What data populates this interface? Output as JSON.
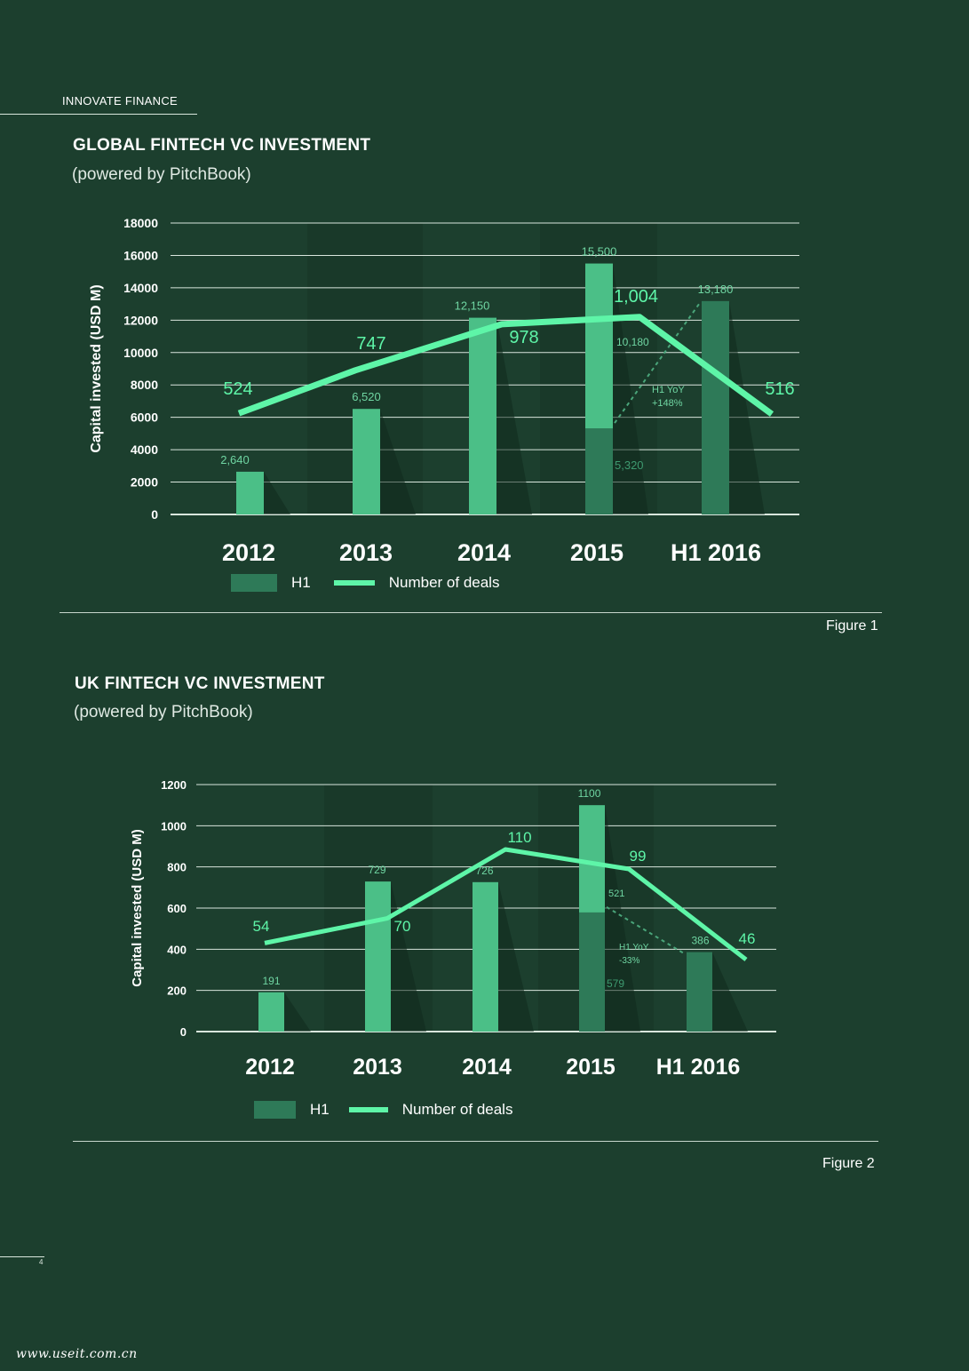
{
  "header": {
    "label": "INNOVATE FINANCE"
  },
  "figure1": {
    "title": "GLOBAL FINTECH VC INVESTMENT",
    "subtitle": "(powered by PitchBook)",
    "figure_label": "Figure 1"
  },
  "figure2": {
    "title": "UK FINTECH VC INVESTMENT",
    "subtitle": "(powered by PitchBook)",
    "figure_label": "Figure 2"
  },
  "legend": {
    "h1_label": "H1",
    "deals_label": "Number of deals"
  },
  "colors": {
    "bar": "#4bbf87",
    "bar_h1": "#2e7a58",
    "deals_line": "#5ef5a8",
    "grid": "#d9e6dd",
    "background": "#1c3f2e"
  },
  "page": {
    "number": "4",
    "watermark": "www.useit.com.cn"
  },
  "chart_data": [
    {
      "type": "bar",
      "title": "GLOBAL FINTECH VC INVESTMENT",
      "ylabel": "Capital invested (USD M)",
      "ylim": [
        0,
        18000
      ],
      "yticks": [
        0,
        2000,
        4000,
        6000,
        8000,
        10000,
        12000,
        14000,
        16000,
        18000
      ],
      "categories": [
        "2012",
        "2013",
        "2014",
        "2015",
        "H1 2016"
      ],
      "values": [
        2640,
        6520,
        12150,
        15500,
        13180
      ],
      "value_labels": [
        "2,640",
        "6,520",
        "12,150",
        "15,500",
        "13,180"
      ],
      "h1_values": [
        null,
        null,
        null,
        5320,
        13180
      ],
      "h1_labels": [
        null,
        null,
        null,
        "5,320",
        null
      ],
      "h2_label": "10,180",
      "yoy_label_1": "H1 YoY",
      "yoy_label_2": "+148%",
      "deals": [
        524,
        747,
        978,
        1004,
        516
      ],
      "deals_labels": [
        "524",
        "747",
        "978",
        "1,004",
        "516"
      ],
      "deals_line_y": [
        6250,
        8900,
        11750,
        12200,
        6200
      ]
    },
    {
      "type": "bar",
      "title": "UK FINTECH VC INVESTMENT",
      "ylabel": "Capital invested (USD M)",
      "ylim": [
        0,
        1200
      ],
      "yticks": [
        0,
        200,
        400,
        600,
        800,
        1000,
        1200
      ],
      "categories": [
        "2012",
        "2013",
        "2014",
        "2015",
        "H1 2016"
      ],
      "values": [
        191,
        729,
        726,
        1100,
        386
      ],
      "value_labels": [
        "191",
        "729",
        "726",
        "1100",
        "386"
      ],
      "h1_values": [
        null,
        null,
        null,
        579,
        386
      ],
      "h1_labels": [
        null,
        null,
        null,
        "579",
        null
      ],
      "h2_label": "521",
      "yoy_label_1": "H1 YoY",
      "yoy_label_2": "-33%",
      "deals": [
        54,
        70,
        110,
        99,
        46
      ],
      "deals_labels": [
        "54",
        "70",
        "110",
        "99",
        "46"
      ],
      "deals_line_y": [
        430,
        550,
        885,
        790,
        350
      ]
    }
  ]
}
